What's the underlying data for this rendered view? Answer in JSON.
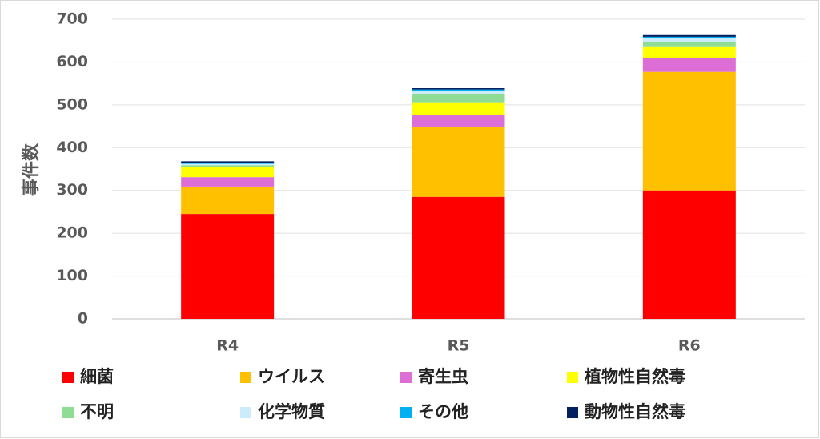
{
  "chart_data": {
    "type": "stacked_bar",
    "y_label": "事件数",
    "categories": [
      "R4",
      "R5",
      "R6"
    ],
    "series": [
      {
        "name": "細菌",
        "color": "#ff0000",
        "values": [
          245,
          285,
          300
        ]
      },
      {
        "name": "ウイルス",
        "color": "#ffc000",
        "values": [
          64,
          163,
          277
        ]
      },
      {
        "name": "寄生虫",
        "color": "#dd6ed6",
        "values": [
          22,
          29,
          32
        ]
      },
      {
        "name": "植物性自然毒",
        "color": "#ffff00",
        "values": [
          23,
          29,
          26
        ]
      },
      {
        "name": "不明",
        "color": "#8fdc94",
        "values": [
          5,
          20,
          13
        ]
      },
      {
        "name": "化学物質",
        "color": "#caecfb",
        "values": [
          3,
          6,
          7
        ]
      },
      {
        "name": "その他",
        "color": "#00b0f0",
        "values": [
          3,
          4,
          4
        ]
      },
      {
        "name": "動物性自然毒",
        "color": "#002060",
        "values": [
          3,
          3,
          4
        ]
      }
    ],
    "ylim": [
      0,
      700
    ],
    "yticks": [
      0,
      100,
      200,
      300,
      400,
      500,
      600,
      700
    ],
    "grid": true
  }
}
